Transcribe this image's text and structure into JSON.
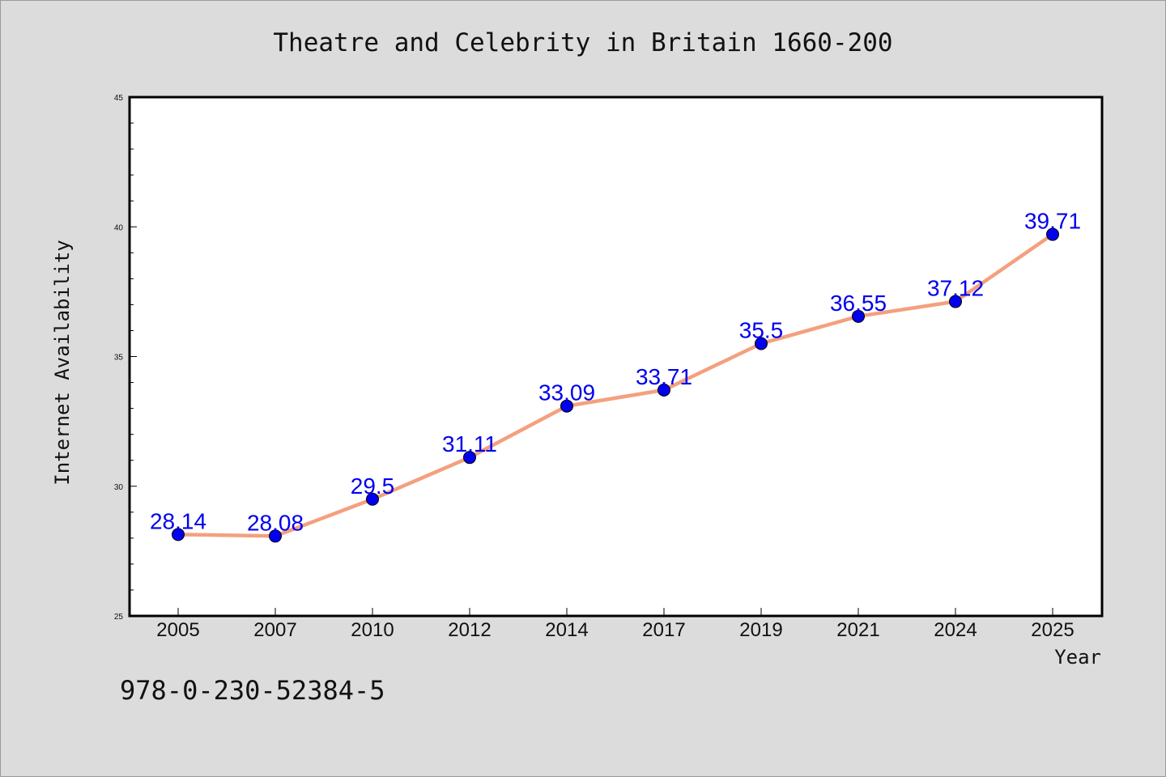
{
  "chart_data": {
    "type": "line",
    "title": "Theatre and Celebrity in Britain 1660-200",
    "xlabel": "Year",
    "ylabel": "Internet Availability",
    "categories": [
      "2005",
      "2007",
      "2010",
      "2012",
      "2014",
      "2017",
      "2019",
      "2021",
      "2024",
      "2025"
    ],
    "values": [
      28.14,
      28.08,
      29.5,
      31.11,
      33.09,
      33.71,
      35.5,
      36.55,
      37.12,
      39.71
    ],
    "data_labels": [
      "28.14",
      "28.08",
      "29.5",
      "31.11",
      "33.09",
      "33.71",
      "35.5",
      "36.55",
      "37.12",
      "39.71"
    ],
    "ylim": [
      25,
      45
    ],
    "yticks": [
      "25",
      "30",
      "35",
      "40",
      "45"
    ],
    "grid": false,
    "line_color": "#f4a07e",
    "marker_color": "#0000ee",
    "label_color": "#0000ee",
    "background": "#dcdcdc",
    "plot_background": "#ffffff"
  },
  "footer_text": "978-0-230-52384-5"
}
